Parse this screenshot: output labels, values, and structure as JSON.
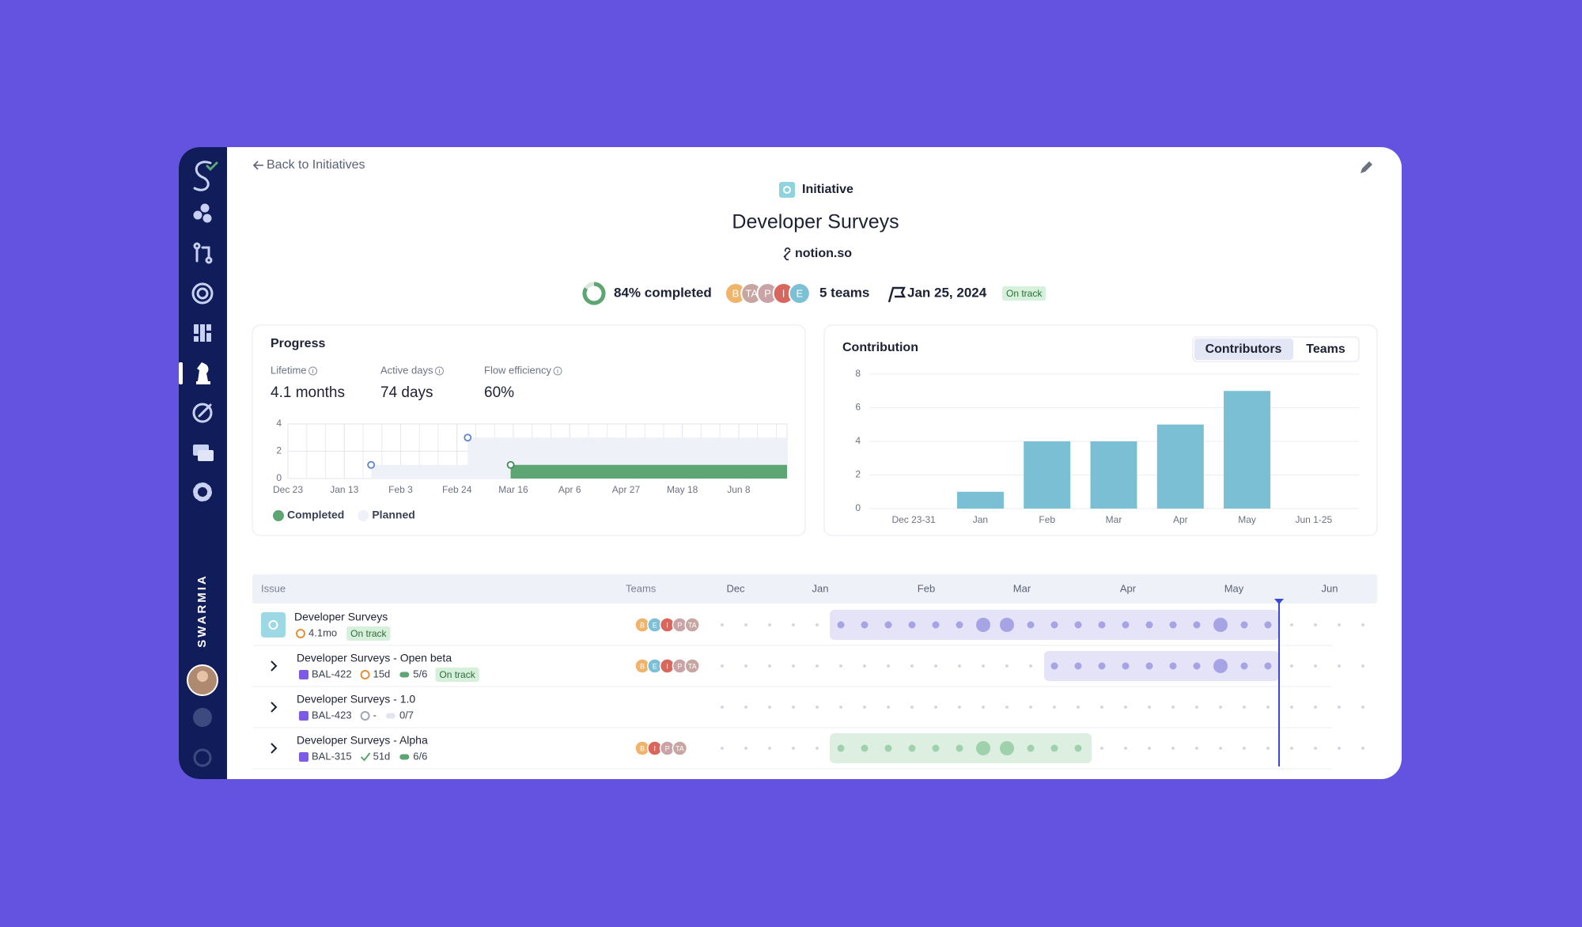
{
  "nav": {
    "back": "Back to Initiatives",
    "brand": "SWARMIA"
  },
  "header": {
    "kind": "Initiative",
    "title": "Developer Surveys",
    "link": "notion.so",
    "completion": {
      "value": 84,
      "label": "84% completed"
    },
    "avatars": [
      "B",
      "TA",
      "P",
      "I",
      "E"
    ],
    "teams": "5 teams",
    "date": "Jan 25, 2024",
    "status": "On track"
  },
  "metrics": [
    {
      "label": "Lifetime",
      "value": "4.1 months"
    },
    {
      "label": "Active days",
      "value": "74 days"
    },
    {
      "label": "Flow efficiency",
      "value": "60%"
    }
  ],
  "chart_data": [
    {
      "type": "area",
      "title": "Progress",
      "step": true,
      "xlim": [
        0,
        186
      ],
      "xticks": [
        {
          "value": 0,
          "label": "Dec 23"
        },
        {
          "value": 21,
          "label": "Jan 13"
        },
        {
          "value": 42,
          "label": "Feb 3"
        },
        {
          "value": 63,
          "label": "Feb 24"
        },
        {
          "value": 84,
          "label": "Mar 16"
        },
        {
          "value": 105,
          "label": "Apr 6"
        },
        {
          "value": 126,
          "label": "Apr 27"
        },
        {
          "value": 147,
          "label": "May 18"
        },
        {
          "value": 168,
          "label": "Jun 8"
        }
      ],
      "ylim": [
        0,
        4
      ],
      "yticks": [
        0,
        2,
        4
      ],
      "grid": true,
      "series": [
        {
          "name": "Completed",
          "color": "#5ea574",
          "marker_color": "#3f8a55",
          "x": [
            83,
            186
          ],
          "values": [
            1,
            1
          ]
        },
        {
          "name": "Planned",
          "color": "#eef1f8",
          "marker_color": "#5b82d4",
          "x": [
            31,
            67,
            186
          ],
          "values": [
            1,
            3,
            3
          ]
        }
      ]
    },
    {
      "type": "bar",
      "title": "Contribution",
      "tabs": [
        "Contributors",
        "Teams"
      ],
      "selected_tab": 0,
      "categories": [
        "Dec 23-31",
        "Jan",
        "Feb",
        "Mar",
        "Apr",
        "May",
        "Jun 1-25"
      ],
      "values": [
        0,
        1,
        4,
        4,
        5,
        7,
        0
      ],
      "color": "#7bbfd4",
      "ylim": [
        0,
        8
      ],
      "yticks": [
        0,
        2,
        4,
        6,
        8
      ],
      "grid": true
    }
  ],
  "table": {
    "columns": [
      "Issue",
      "Teams"
    ],
    "months": [
      "Dec",
      "Jan",
      "Feb",
      "Mar",
      "Apr",
      "May",
      "Jun"
    ],
    "rows": [
      {
        "name": "Developer Surveys",
        "duration": "4.1mo",
        "status": "On track",
        "teams": [
          "B",
          "E",
          "I",
          "P",
          "TA"
        ]
      },
      {
        "name": "Developer Surveys - Open beta",
        "key": "BAL-422",
        "duration": "15d",
        "done": "5/6",
        "status": "On track",
        "teams": [
          "B",
          "E",
          "I",
          "P",
          "TA"
        ]
      },
      {
        "name": "Developer Surveys - 1.0",
        "key": "BAL-423",
        "duration": "-",
        "done": "0/7",
        "teams": []
      },
      {
        "name": "Developer Surveys - Alpha",
        "key": "BAL-315",
        "duration": "51d",
        "done": "6/6",
        "teams": [
          "B",
          "I",
          "P",
          "TA"
        ]
      }
    ]
  }
}
